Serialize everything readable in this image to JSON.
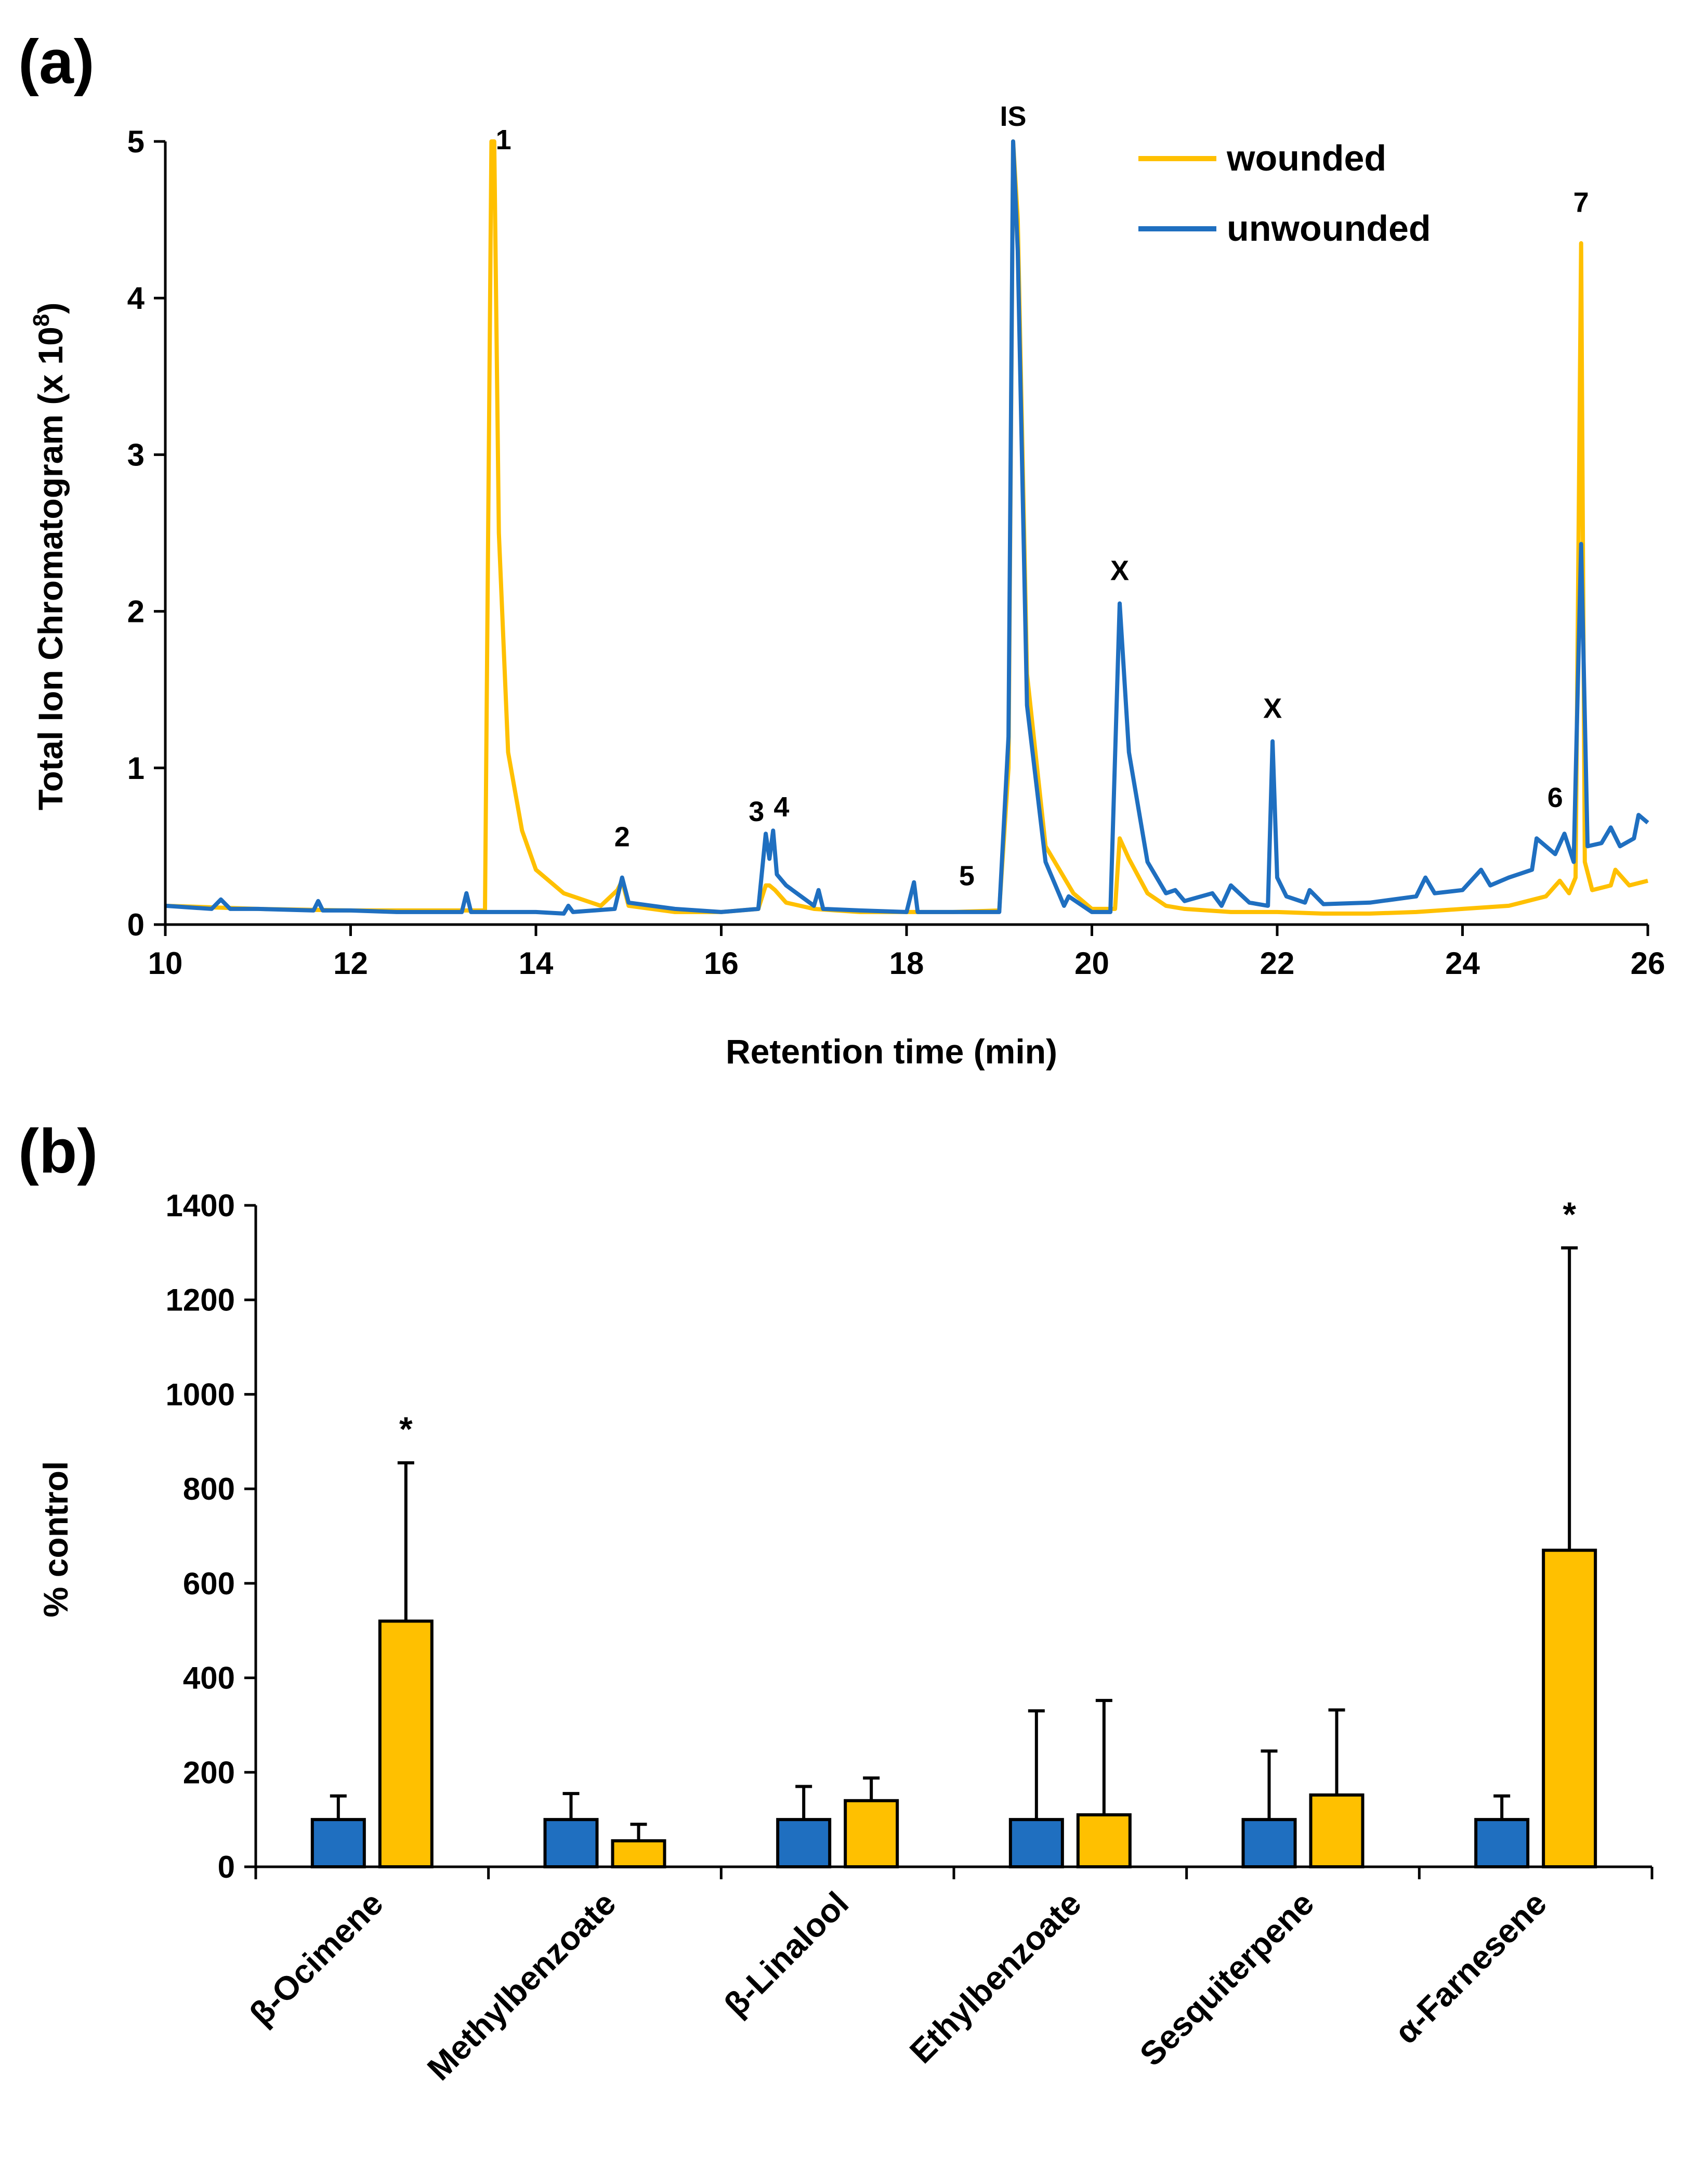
{
  "chart_data": [
    {
      "panel": "(a)",
      "type": "line",
      "xlabel": "Retention time (min)",
      "ylabel": "Total Ion Chromatogram (x 10",
      "ylabel_sup": "8",
      "ylabel_close": ")",
      "xlim": [
        10,
        26
      ],
      "ylim": [
        0,
        5
      ],
      "xticks": [
        "10",
        "12",
        "14",
        "16",
        "18",
        "20",
        "22",
        "24",
        "26"
      ],
      "yticks": [
        "0",
        "1",
        "2",
        "3",
        "4",
        "5"
      ],
      "legend": [
        "wounded",
        "unwounded"
      ],
      "colors": {
        "wounded": "#FFC000",
        "unwounded": "#1F6FC0"
      },
      "series": [
        {
          "name": "wounded",
          "x": [
            10,
            11,
            12,
            13,
            13.45,
            13.52,
            13.55,
            13.6,
            13.7,
            13.85,
            14.0,
            14.3,
            14.7,
            14.88,
            14.93,
            15.0,
            15.5,
            16.0,
            16.4,
            16.48,
            16.52,
            16.58,
            16.7,
            17.0,
            17.5,
            18.0,
            18.5,
            19.0,
            19.1,
            19.15,
            19.2,
            19.3,
            19.5,
            19.8,
            20.0,
            20.25,
            20.3,
            20.4,
            20.6,
            20.8,
            21.0,
            21.5,
            22.0,
            22.5,
            23.0,
            23.5,
            24.0,
            24.5,
            24.9,
            25.05,
            25.15,
            25.22,
            25.28,
            25.32,
            25.4,
            25.6,
            25.65,
            25.8,
            26.0
          ],
          "y": [
            0.12,
            0.1,
            0.09,
            0.09,
            0.09,
            5.0,
            5.0,
            2.5,
            1.1,
            0.6,
            0.35,
            0.2,
            0.12,
            0.22,
            0.28,
            0.12,
            0.08,
            0.08,
            0.1,
            0.25,
            0.25,
            0.22,
            0.14,
            0.1,
            0.08,
            0.08,
            0.08,
            0.09,
            1.0,
            5.0,
            4.5,
            1.6,
            0.5,
            0.2,
            0.1,
            0.1,
            0.55,
            0.42,
            0.2,
            0.12,
            0.1,
            0.08,
            0.08,
            0.07,
            0.07,
            0.08,
            0.1,
            0.12,
            0.18,
            0.28,
            0.2,
            0.3,
            4.35,
            0.4,
            0.22,
            0.25,
            0.35,
            0.25,
            0.28
          ]
        },
        {
          "name": "unwounded",
          "x": [
            10,
            10.5,
            10.6,
            10.7,
            11.0,
            11.6,
            11.65,
            11.7,
            12.0,
            12.5,
            13.0,
            13.2,
            13.25,
            13.3,
            13.5,
            14.0,
            14.3,
            14.35,
            14.4,
            14.85,
            14.93,
            15.0,
            15.5,
            16.0,
            16.4,
            16.48,
            16.52,
            16.56,
            16.6,
            16.7,
            17.0,
            17.05,
            17.1,
            17.5,
            18.0,
            18.08,
            18.12,
            18.5,
            19.0,
            19.1,
            19.15,
            19.2,
            19.3,
            19.5,
            19.7,
            19.75,
            20.0,
            20.2,
            20.3,
            20.4,
            20.6,
            20.8,
            20.9,
            21.0,
            21.3,
            21.4,
            21.5,
            21.7,
            21.9,
            21.95,
            22.0,
            22.1,
            22.3,
            22.35,
            22.5,
            23.0,
            23.5,
            23.6,
            23.7,
            24.0,
            24.2,
            24.3,
            24.5,
            24.75,
            24.8,
            25.0,
            25.1,
            25.2,
            25.28,
            25.35,
            25.5,
            25.6,
            25.7,
            25.85,
            25.9,
            26.0
          ],
          "y": [
            0.12,
            0.1,
            0.16,
            0.1,
            0.1,
            0.09,
            0.15,
            0.09,
            0.09,
            0.08,
            0.08,
            0.08,
            0.2,
            0.08,
            0.08,
            0.08,
            0.07,
            0.12,
            0.08,
            0.1,
            0.3,
            0.14,
            0.1,
            0.08,
            0.1,
            0.58,
            0.42,
            0.6,
            0.32,
            0.25,
            0.12,
            0.22,
            0.1,
            0.09,
            0.08,
            0.27,
            0.08,
            0.08,
            0.08,
            1.2,
            5.0,
            4.3,
            1.4,
            0.4,
            0.12,
            0.18,
            0.08,
            0.08,
            2.05,
            1.1,
            0.4,
            0.2,
            0.22,
            0.15,
            0.2,
            0.12,
            0.25,
            0.14,
            0.12,
            1.17,
            0.3,
            0.18,
            0.14,
            0.22,
            0.13,
            0.14,
            0.18,
            0.3,
            0.2,
            0.22,
            0.35,
            0.25,
            0.3,
            0.35,
            0.55,
            0.45,
            0.58,
            0.4,
            2.43,
            0.5,
            0.52,
            0.62,
            0.5,
            0.55,
            0.7,
            0.65
          ]
        }
      ],
      "annotations": [
        {
          "text": "1",
          "x": 13.65,
          "y": 4.95
        },
        {
          "text": "IS",
          "x": 19.15,
          "y": 5.1
        },
        {
          "text": "2",
          "x": 14.93,
          "y": 0.5
        },
        {
          "text": "3",
          "x": 16.38,
          "y": 0.66
        },
        {
          "text": "4",
          "x": 16.65,
          "y": 0.69
        },
        {
          "text": "5",
          "x": 18.65,
          "y": 0.25
        },
        {
          "text": "X",
          "x": 20.3,
          "y": 2.2
        },
        {
          "text": "X",
          "x": 21.95,
          "y": 1.32
        },
        {
          "text": "6",
          "x": 25.0,
          "y": 0.75
        },
        {
          "text": "7",
          "x": 25.28,
          "y": 4.55
        }
      ]
    },
    {
      "panel": "(b)",
      "type": "bar",
      "ylabel": "% control",
      "ylim": [
        0,
        1400
      ],
      "yticks": [
        "0",
        "200",
        "400",
        "600",
        "800",
        "1000",
        "1200",
        "1400"
      ],
      "categories": [
        "β-Ocimene",
        "Methylbenzoate",
        "β-Linalool",
        "Ethylbenzoate",
        "Sesquiterpene",
        "α-Farnesene"
      ],
      "series": [
        {
          "name": "unwounded",
          "color": "#1F6FC0",
          "values": [
            100,
            100,
            100,
            100,
            100,
            100
          ],
          "errors": [
            50,
            55,
            70,
            230,
            145,
            50
          ]
        },
        {
          "name": "wounded",
          "color": "#FFC000",
          "values": [
            520,
            55,
            140,
            110,
            152,
            670
          ],
          "errors": [
            335,
            35,
            48,
            242,
            180,
            640
          ]
        }
      ],
      "significance": [
        "*",
        "",
        "",
        "",
        "",
        "*"
      ]
    }
  ]
}
